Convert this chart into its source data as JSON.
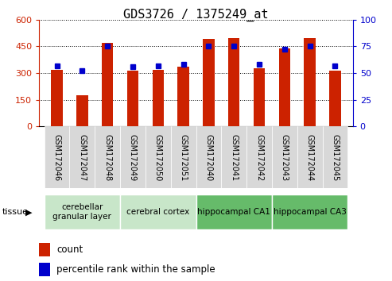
{
  "title": "GDS3726 / 1375249_at",
  "samples": [
    "GSM172046",
    "GSM172047",
    "GSM172048",
    "GSM172049",
    "GSM172050",
    "GSM172051",
    "GSM172040",
    "GSM172041",
    "GSM172042",
    "GSM172043",
    "GSM172044",
    "GSM172045"
  ],
  "counts": [
    320,
    175,
    470,
    315,
    320,
    335,
    490,
    495,
    325,
    440,
    495,
    315
  ],
  "percentiles": [
    57,
    52,
    75,
    56,
    57,
    58,
    75,
    75,
    58,
    72,
    75,
    57
  ],
  "bar_color": "#cc2200",
  "dot_color": "#0000cc",
  "left_ylim": [
    0,
    600
  ],
  "right_ylim": [
    0,
    100
  ],
  "left_yticks": [
    0,
    150,
    300,
    450,
    600
  ],
  "right_yticks": [
    0,
    25,
    50,
    75,
    100
  ],
  "tissue_groups": [
    {
      "label": "cerebellar\ngranular layer",
      "start": 0,
      "end": 3,
      "color": "#c8e6c9"
    },
    {
      "label": "cerebral cortex",
      "start": 3,
      "end": 6,
      "color": "#c8e6c9"
    },
    {
      "label": "hippocampal CA1",
      "start": 6,
      "end": 9,
      "color": "#66bb6a"
    },
    {
      "label": "hippocampal CA3",
      "start": 9,
      "end": 12,
      "color": "#66bb6a"
    }
  ],
  "legend_count_label": "count",
  "legend_pct_label": "percentile rank within the sample",
  "tissue_label": "tissue",
  "bar_width": 0.45,
  "background_color": "#ffffff",
  "plot_bg_color": "#ffffff",
  "left_tick_color": "#cc2200",
  "right_tick_color": "#0000cc",
  "title_fontsize": 11,
  "tick_fontsize": 8,
  "sample_label_fontsize": 7,
  "tissue_fontsize": 7.5
}
